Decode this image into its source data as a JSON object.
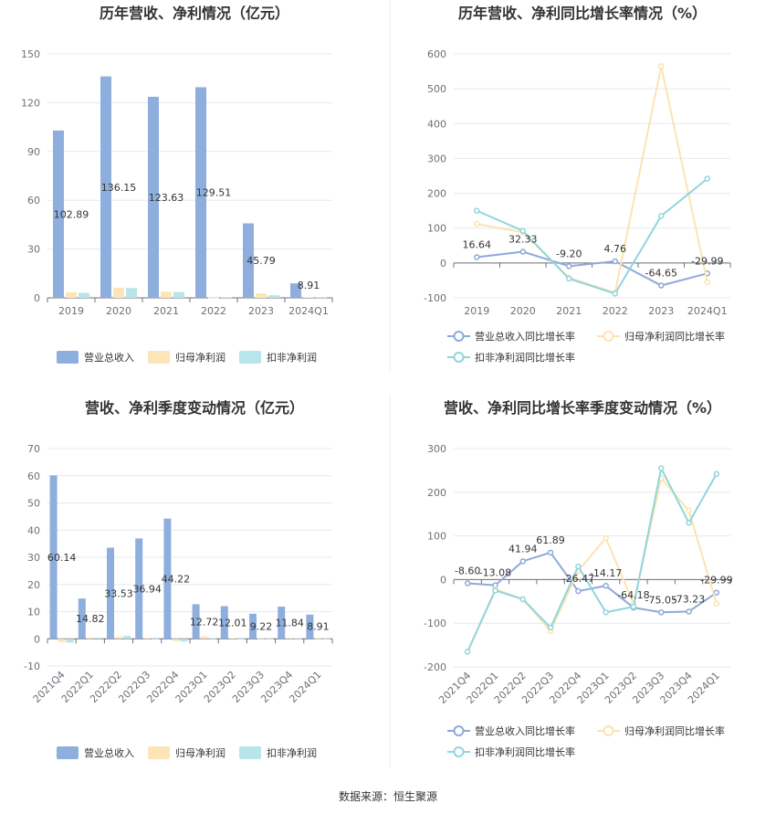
{
  "source": "数据来源：恒生聚源",
  "colors": {
    "revenue": "#8eaedd",
    "net": "#fde5b8",
    "nonrec": "#b7e5ea",
    "line_revenue": "#8ea9d9",
    "line_net": "#fde3b2",
    "line_nonrec": "#8fd6dd",
    "grid": "#e6e8ef"
  },
  "chart_data": [
    {
      "type": "bar",
      "title": "历年营收、净利情况（亿元）",
      "categories": [
        "2019",
        "2020",
        "2021",
        "2022",
        "2023",
        "2024Q1"
      ],
      "ylim": [
        0,
        150
      ],
      "yticks": [
        0,
        30,
        60,
        90,
        120,
        150
      ],
      "series": [
        {
          "name": "营业总收入",
          "values": [
            102.89,
            136.15,
            123.63,
            129.51,
            45.79,
            8.91
          ],
          "labels": [
            "102.89",
            "136.15",
            "123.63",
            "129.51",
            "45.79",
            "8.91"
          ]
        },
        {
          "name": "归母净利润",
          "values": [
            3.4,
            6.2,
            3.8,
            0.2,
            2.8,
            0.5
          ]
        },
        {
          "name": "扣非净利润",
          "values": [
            3.1,
            6.0,
            3.6,
            0.4,
            1.6,
            0.4
          ]
        }
      ],
      "legend": "bottom"
    },
    {
      "type": "line",
      "title": "历年营收、净利同比增长率情况（%）",
      "categories": [
        "2019",
        "2020",
        "2021",
        "2022",
        "2023",
        "2024Q1"
      ],
      "ylim": [
        -100,
        600
      ],
      "yticks": [
        -100,
        0,
        100,
        200,
        300,
        400,
        500,
        600
      ],
      "series": [
        {
          "name": "营业总收入同比增长率",
          "values": [
            16.64,
            32.33,
            -9.2,
            4.76,
            -64.65,
            -29.99
          ],
          "labels": [
            "16.64",
            "32.33",
            "-9.20",
            "4.76",
            "-64.65",
            "-29.99"
          ]
        },
        {
          "name": "归母净利润同比增长率",
          "values": [
            112,
            88,
            -42,
            -85,
            565,
            -55
          ]
        },
        {
          "name": "扣非净利润同比增长率",
          "values": [
            150,
            92,
            -45,
            -88,
            135,
            242
          ]
        }
      ],
      "legend": "bottom"
    },
    {
      "type": "bar",
      "title": "营收、净利季度变动情况（亿元）",
      "categories": [
        "2021Q4",
        "2022Q1",
        "2022Q2",
        "2022Q3",
        "2022Q4",
        "2023Q1",
        "2023Q2",
        "2023Q3",
        "2023Q4",
        "2024Q1"
      ],
      "ylim": [
        -10,
        70
      ],
      "yticks": [
        -10,
        0,
        10,
        20,
        30,
        40,
        50,
        60,
        70
      ],
      "series": [
        {
          "name": "营业总收入",
          "values": [
            60.14,
            14.82,
            33.53,
            36.94,
            44.22,
            12.72,
            12.01,
            9.22,
            11.84,
            8.91
          ],
          "labels": [
            "60.14",
            "14.82",
            "33.53",
            "36.94",
            "44.22",
            "12.72",
            "12.01",
            "9.22",
            "11.84",
            "8.91"
          ]
        },
        {
          "name": "归母净利润",
          "values": [
            -1.2,
            0.5,
            0.8,
            0.3,
            -0.8,
            0.9,
            0.3,
            0.2,
            0.3,
            0.2
          ]
        },
        {
          "name": "扣非净利润",
          "values": [
            -1.4,
            0.4,
            1.1,
            0.1,
            -1.0,
            0.2,
            0.1,
            0.1,
            0.2,
            0.1
          ]
        }
      ],
      "legend": "bottom"
    },
    {
      "type": "line",
      "title": "营收、净利同比增长率季度变动情况（%）",
      "categories": [
        "2021Q4",
        "2022Q1",
        "2022Q2",
        "2022Q3",
        "2022Q4",
        "2023Q1",
        "2023Q2",
        "2023Q3",
        "2023Q4",
        "2024Q1"
      ],
      "ylim": [
        -200,
        300
      ],
      "yticks": [
        -200,
        -100,
        0,
        100,
        200,
        300
      ],
      "series": [
        {
          "name": "营业总收入同比增长率",
          "values": [
            -8.6,
            -13.08,
            41.94,
            61.89,
            -26.47,
            -14.17,
            -64.18,
            -75.05,
            -73.23,
            -29.99
          ],
          "labels": [
            "-8.60",
            "-13.08",
            "41.94",
            "61.89",
            "-26.47",
            "-14.17",
            "-64.18",
            "-75.05",
            "-73.23",
            "-29.99"
          ]
        },
        {
          "name": "归母净利润同比增长率",
          "values": [
            -165,
            -22,
            -45,
            -118,
            20,
            95,
            -55,
            232,
            158,
            -55
          ]
        },
        {
          "name": "扣非净利润同比增长率",
          "values": [
            -165,
            -25,
            -45,
            -110,
            30,
            -75,
            -62,
            255,
            130,
            242
          ]
        }
      ],
      "legend": "bottom"
    }
  ]
}
